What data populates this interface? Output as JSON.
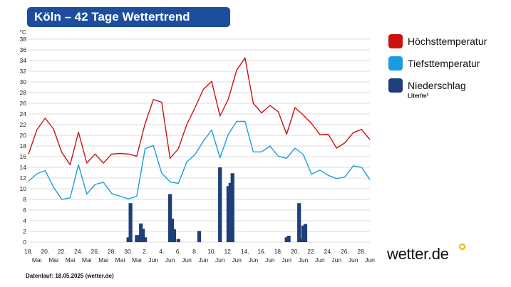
{
  "title": "Köln – 42 Tage Wettertrend",
  "legend": {
    "max": "Höchsttemperatur",
    "min": "Tiefsttemperatur",
    "rain": "Niederschlag",
    "rain_unit": "Liter/m²"
  },
  "footer": "Datenlauf: 18.05.2025 (wetter.de)",
  "logo": "wetter.de",
  "colors": {
    "max": "#cc1111",
    "min": "#1a9de0",
    "rain": "#1d3f7a",
    "title_bg": "#1d4e9e",
    "logo_accent": "#e8b400"
  },
  "chart_data": {
    "type": "line",
    "y_unit": "°C",
    "ylim": [
      0,
      38
    ],
    "yticks": [
      0,
      2,
      4,
      6,
      8,
      10,
      12,
      14,
      16,
      18,
      20,
      22,
      24,
      26,
      28,
      30,
      32,
      34,
      36,
      38
    ],
    "grid": true,
    "x_ticks": [
      {
        "day": "18.",
        "month": "Mai",
        "index": 0
      },
      {
        "day": "20.",
        "month": "Mai",
        "index": 2
      },
      {
        "day": "22.",
        "month": "Mai",
        "index": 4
      },
      {
        "day": "24.",
        "month": "Mai",
        "index": 6
      },
      {
        "day": "26.",
        "month": "Mai",
        "index": 8
      },
      {
        "day": "28.",
        "month": "Mai",
        "index": 10
      },
      {
        "day": "30.",
        "month": "Mai",
        "index": 12
      },
      {
        "day": "2.",
        "month": "Jun",
        "index": 14
      },
      {
        "day": "4.",
        "month": "Jun",
        "index": 16
      },
      {
        "day": "6.",
        "month": "Jun",
        "index": 18
      },
      {
        "day": "8.",
        "month": "Jun",
        "index": 20
      },
      {
        "day": "10.",
        "month": "Jun",
        "index": 22
      },
      {
        "day": "12.",
        "month": "Jun",
        "index": 24
      },
      {
        "day": "14.",
        "month": "Jun",
        "index": 26
      },
      {
        "day": "16.",
        "month": "Jun",
        "index": 28
      },
      {
        "day": "18.",
        "month": "Jun",
        "index": 30
      },
      {
        "day": "20.",
        "month": "Jun",
        "index": 32
      },
      {
        "day": "22.",
        "month": "Jun",
        "index": 34
      },
      {
        "day": "24.",
        "month": "Jun",
        "index": 36
      },
      {
        "day": "26.",
        "month": "Jun",
        "index": 38
      },
      {
        "day": "28.",
        "month": "Jun",
        "index": 40
      }
    ],
    "series": [
      {
        "name": "Höchsttemperatur",
        "kind": "line",
        "values": [
          16.5,
          21.0,
          23.2,
          21.2,
          16.8,
          14.5,
          20.6,
          14.8,
          16.5,
          14.8,
          16.5,
          16.6,
          16.5,
          16.1,
          22.2,
          26.7,
          26.2,
          15.7,
          17.5,
          22.0,
          25.2,
          28.6,
          30.1,
          23.6,
          26.8,
          32.2,
          34.5,
          26.0,
          24.2,
          25.6,
          24.4,
          20.2,
          25.2,
          23.8,
          22.2,
          20.1,
          20.2,
          17.6,
          18.6,
          20.5,
          21.1,
          19.2
        ]
      },
      {
        "name": "Tiefsttemperatur",
        "kind": "line",
        "values": [
          11.4,
          12.8,
          13.4,
          10.3,
          8.0,
          8.3,
          14.5,
          9.0,
          10.8,
          11.2,
          9.1,
          8.6,
          8.1,
          8.6,
          17.5,
          18.1,
          12.9,
          11.3,
          11.0,
          15.0,
          16.4,
          18.9,
          21.0,
          15.8,
          20.2,
          22.6,
          22.6,
          16.9,
          16.9,
          18.0,
          16.1,
          15.7,
          17.6,
          16.4,
          12.7,
          13.5,
          12.5,
          11.9,
          12.2,
          14.3,
          14.0,
          11.7
        ]
      },
      {
        "name": "Niederschlag",
        "kind": "bar",
        "values": [
          [
            24.0,
            0.9
          ],
          [
            24.5,
            7.3
          ],
          [
            26.0,
            1.3
          ],
          [
            26.5,
            1.3
          ],
          [
            27.0,
            3.5
          ],
          [
            27.5,
            2.5
          ],
          [
            28.0,
            0.9
          ],
          [
            34.0,
            9.0
          ],
          [
            34.5,
            4.4
          ],
          [
            35.0,
            2.4
          ],
          [
            36.0,
            0.6
          ],
          [
            41.0,
            2.1
          ],
          [
            46.0,
            14.0
          ],
          [
            48.0,
            10.5
          ],
          [
            48.5,
            11.1
          ],
          [
            49.0,
            12.9
          ],
          [
            62.0,
            0.9
          ],
          [
            62.5,
            1.2
          ],
          [
            65.0,
            7.3
          ],
          [
            65.5,
            0.6
          ],
          [
            66.0,
            3.1
          ],
          [
            66.5,
            3.4
          ]
        ]
      }
    ]
  }
}
